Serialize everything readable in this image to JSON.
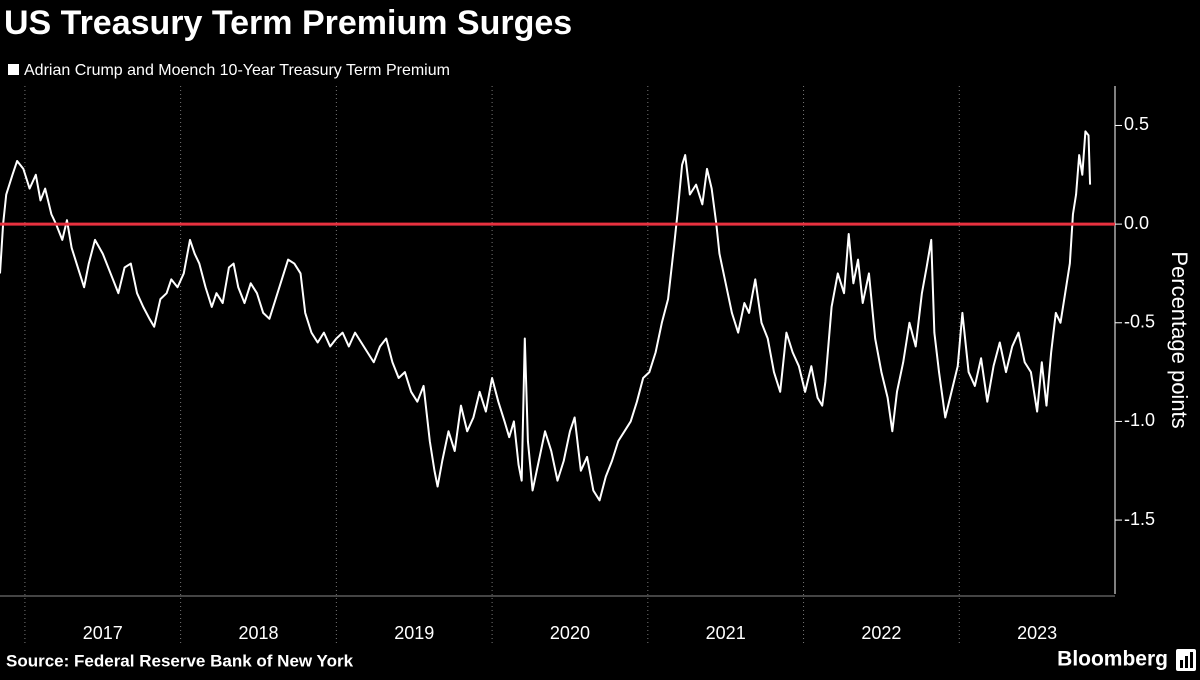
{
  "chart_data": {
    "type": "line",
    "title": "US Treasury Term Premium Surges",
    "ylabel": "Percentage points",
    "source": "Source: Federal Reserve Bank of New York",
    "brand": "Bloomberg",
    "x": [
      2016.84,
      2016.86,
      2016.88,
      2016.92,
      2016.95,
      2016.99,
      2017.03,
      2017.07,
      2017.1,
      2017.13,
      2017.17,
      2017.2,
      2017.24,
      2017.27,
      2017.3,
      2017.34,
      2017.38,
      2017.41,
      2017.45,
      2017.5,
      2017.55,
      2017.6,
      2017.64,
      2017.68,
      2017.72,
      2017.76,
      2017.8,
      2017.83,
      2017.87,
      2017.91,
      2017.94,
      2017.98,
      2018.02,
      2018.06,
      2018.09,
      2018.12,
      2018.16,
      2018.2,
      2018.23,
      2018.27,
      2018.31,
      2018.34,
      2018.37,
      2018.41,
      2018.45,
      2018.49,
      2018.53,
      2018.57,
      2018.61,
      2018.65,
      2018.69,
      2018.73,
      2018.77,
      2018.8,
      2018.84,
      2018.88,
      2018.92,
      2018.96,
      2019.0,
      2019.04,
      2019.08,
      2019.12,
      2019.16,
      2019.2,
      2019.24,
      2019.28,
      2019.32,
      2019.36,
      2019.4,
      2019.44,
      2019.48,
      2019.52,
      2019.56,
      2019.6,
      2019.63,
      2019.65,
      2019.68,
      2019.72,
      2019.76,
      2019.8,
      2019.84,
      2019.88,
      2019.92,
      2019.96,
      2020.0,
      2020.04,
      2020.08,
      2020.11,
      2020.14,
      2020.17,
      2020.19,
      2020.21,
      2020.23,
      2020.26,
      2020.3,
      2020.34,
      2020.38,
      2020.42,
      2020.46,
      2020.5,
      2020.53,
      2020.57,
      2020.61,
      2020.65,
      2020.69,
      2020.73,
      2020.77,
      2020.81,
      2020.85,
      2020.89,
      2020.93,
      2020.97,
      2021.01,
      2021.05,
      2021.09,
      2021.13,
      2021.17,
      2021.19,
      2021.22,
      2021.24,
      2021.27,
      2021.31,
      2021.35,
      2021.38,
      2021.41,
      2021.44,
      2021.46,
      2021.5,
      2021.54,
      2021.58,
      2021.62,
      2021.65,
      2021.69,
      2021.73,
      2021.77,
      2021.81,
      2021.85,
      2021.89,
      2021.93,
      2021.97,
      2022.01,
      2022.05,
      2022.09,
      2022.12,
      2022.14,
      2022.18,
      2022.22,
      2022.26,
      2022.29,
      2022.32,
      2022.35,
      2022.38,
      2022.42,
      2022.46,
      2022.5,
      2022.54,
      2022.57,
      2022.6,
      2022.64,
      2022.68,
      2022.72,
      2022.76,
      2022.79,
      2022.82,
      2022.84,
      2022.87,
      2022.91,
      2022.95,
      2022.99,
      2023.02,
      2023.06,
      2023.1,
      2023.14,
      2023.18,
      2023.22,
      2023.26,
      2023.3,
      2023.34,
      2023.38,
      2023.42,
      2023.46,
      2023.5,
      2023.53,
      2023.56,
      2023.59,
      2023.62,
      2023.65,
      2023.68,
      2023.71,
      2023.73,
      2023.75,
      2023.77,
      2023.79,
      2023.81,
      2023.83,
      2023.84
    ],
    "series": [
      {
        "name": "Adrian Crump and Moench 10-Year Treasury Term Premium",
        "color": "#ffffff",
        "values": [
          -0.25,
          0.0,
          0.15,
          0.25,
          0.32,
          0.28,
          0.18,
          0.25,
          0.12,
          0.18,
          0.05,
          0.0,
          -0.08,
          0.02,
          -0.12,
          -0.22,
          -0.32,
          -0.2,
          -0.08,
          -0.15,
          -0.25,
          -0.35,
          -0.22,
          -0.2,
          -0.35,
          -0.42,
          -0.48,
          -0.52,
          -0.38,
          -0.35,
          -0.28,
          -0.32,
          -0.25,
          -0.08,
          -0.15,
          -0.2,
          -0.32,
          -0.42,
          -0.35,
          -0.4,
          -0.22,
          -0.2,
          -0.32,
          -0.4,
          -0.3,
          -0.35,
          -0.45,
          -0.48,
          -0.38,
          -0.28,
          -0.18,
          -0.2,
          -0.25,
          -0.45,
          -0.55,
          -0.6,
          -0.55,
          -0.62,
          -0.58,
          -0.55,
          -0.62,
          -0.55,
          -0.6,
          -0.65,
          -0.7,
          -0.62,
          -0.58,
          -0.7,
          -0.78,
          -0.75,
          -0.85,
          -0.9,
          -0.82,
          -1.1,
          -1.25,
          -1.33,
          -1.2,
          -1.05,
          -1.15,
          -0.92,
          -1.05,
          -0.98,
          -0.85,
          -0.95,
          -0.78,
          -0.9,
          -1.0,
          -1.08,
          -1.0,
          -1.22,
          -1.3,
          -0.58,
          -1.1,
          -1.35,
          -1.2,
          -1.05,
          -1.15,
          -1.3,
          -1.2,
          -1.05,
          -0.98,
          -1.25,
          -1.18,
          -1.35,
          -1.4,
          -1.28,
          -1.2,
          -1.1,
          -1.05,
          -1.0,
          -0.9,
          -0.78,
          -0.75,
          -0.65,
          -0.5,
          -0.38,
          -0.1,
          0.05,
          0.3,
          0.35,
          0.15,
          0.2,
          0.1,
          0.28,
          0.18,
          0.0,
          -0.15,
          -0.3,
          -0.45,
          -0.55,
          -0.4,
          -0.45,
          -0.28,
          -0.5,
          -0.58,
          -0.75,
          -0.85,
          -0.55,
          -0.65,
          -0.72,
          -0.85,
          -0.72,
          -0.88,
          -0.92,
          -0.8,
          -0.42,
          -0.25,
          -0.35,
          -0.05,
          -0.3,
          -0.18,
          -0.4,
          -0.25,
          -0.58,
          -0.75,
          -0.88,
          -1.05,
          -0.85,
          -0.7,
          -0.5,
          -0.62,
          -0.35,
          -0.22,
          -0.08,
          -0.55,
          -0.75,
          -0.98,
          -0.85,
          -0.72,
          -0.45,
          -0.75,
          -0.82,
          -0.68,
          -0.9,
          -0.72,
          -0.6,
          -0.75,
          -0.62,
          -0.55,
          -0.7,
          -0.75,
          -0.95,
          -0.7,
          -0.92,
          -0.65,
          -0.45,
          -0.5,
          -0.35,
          -0.2,
          0.05,
          0.15,
          0.35,
          0.25,
          0.47,
          0.45,
          0.2
        ]
      }
    ],
    "xlim": [
      2016.84,
      2024.0
    ],
    "xticks": [
      2017,
      2018,
      2019,
      2020,
      2021,
      2022,
      2023
    ],
    "ylim": [
      -1.9,
      0.7
    ],
    "yticks": [
      0.5,
      {
        "value": 0,
        "label": "0.0"
      },
      -0.5,
      {
        "value": -1,
        "label": "-1.0"
      },
      -1.5
    ],
    "reference_lines": [
      {
        "value": 0,
        "color": "#e8313f"
      }
    ]
  }
}
